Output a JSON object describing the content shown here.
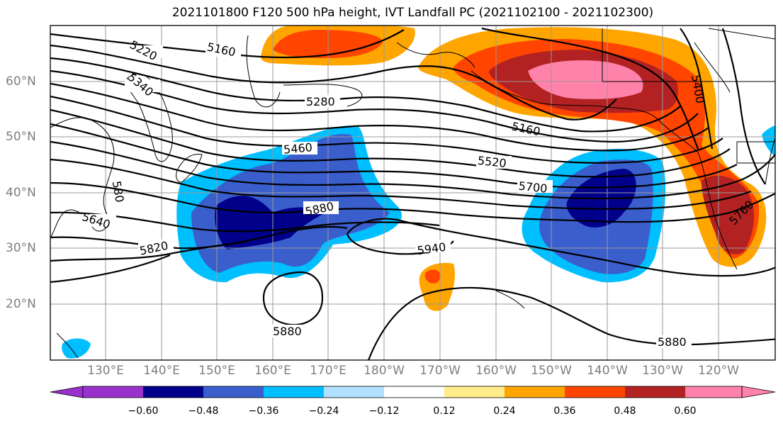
{
  "title": "2021101800 F120 500 hPa height, IVT Landfall PC (2021102100 - 2021102300)",
  "lat_labels": [
    "60°N",
    "50°N",
    "40°N",
    "30°N",
    "20°N"
  ],
  "lon_labels": [
    "130°E",
    "140°E",
    "150°E",
    "160°E",
    "170°E",
    "180°W",
    "170°W",
    "160°W",
    "150°W",
    "140°W",
    "130°W",
    "120°W"
  ],
  "contour_labels": [
    "5160",
    "5220",
    "5340",
    "5280",
    "5460",
    "5520",
    "5700",
    "5880",
    "5820",
    "5640",
    "5940",
    "5880",
    "5880",
    "5160",
    "5400",
    "5760",
    "580"
  ],
  "colorbar": {
    "ticks": [
      "−0.60",
      "−0.48",
      "−0.36",
      "−0.24",
      "−0.12",
      "0.12",
      "0.24",
      "0.36",
      "0.48",
      "0.60"
    ],
    "colors": [
      "#9932cc",
      "#00008b",
      "#3a5fcd",
      "#00bfff",
      "#b0e2ff",
      "#ffffff",
      "#ffec8b",
      "#ffa500",
      "#ff4500",
      "#b22222",
      "#ff82ab",
      "#ff82ab"
    ]
  }
}
